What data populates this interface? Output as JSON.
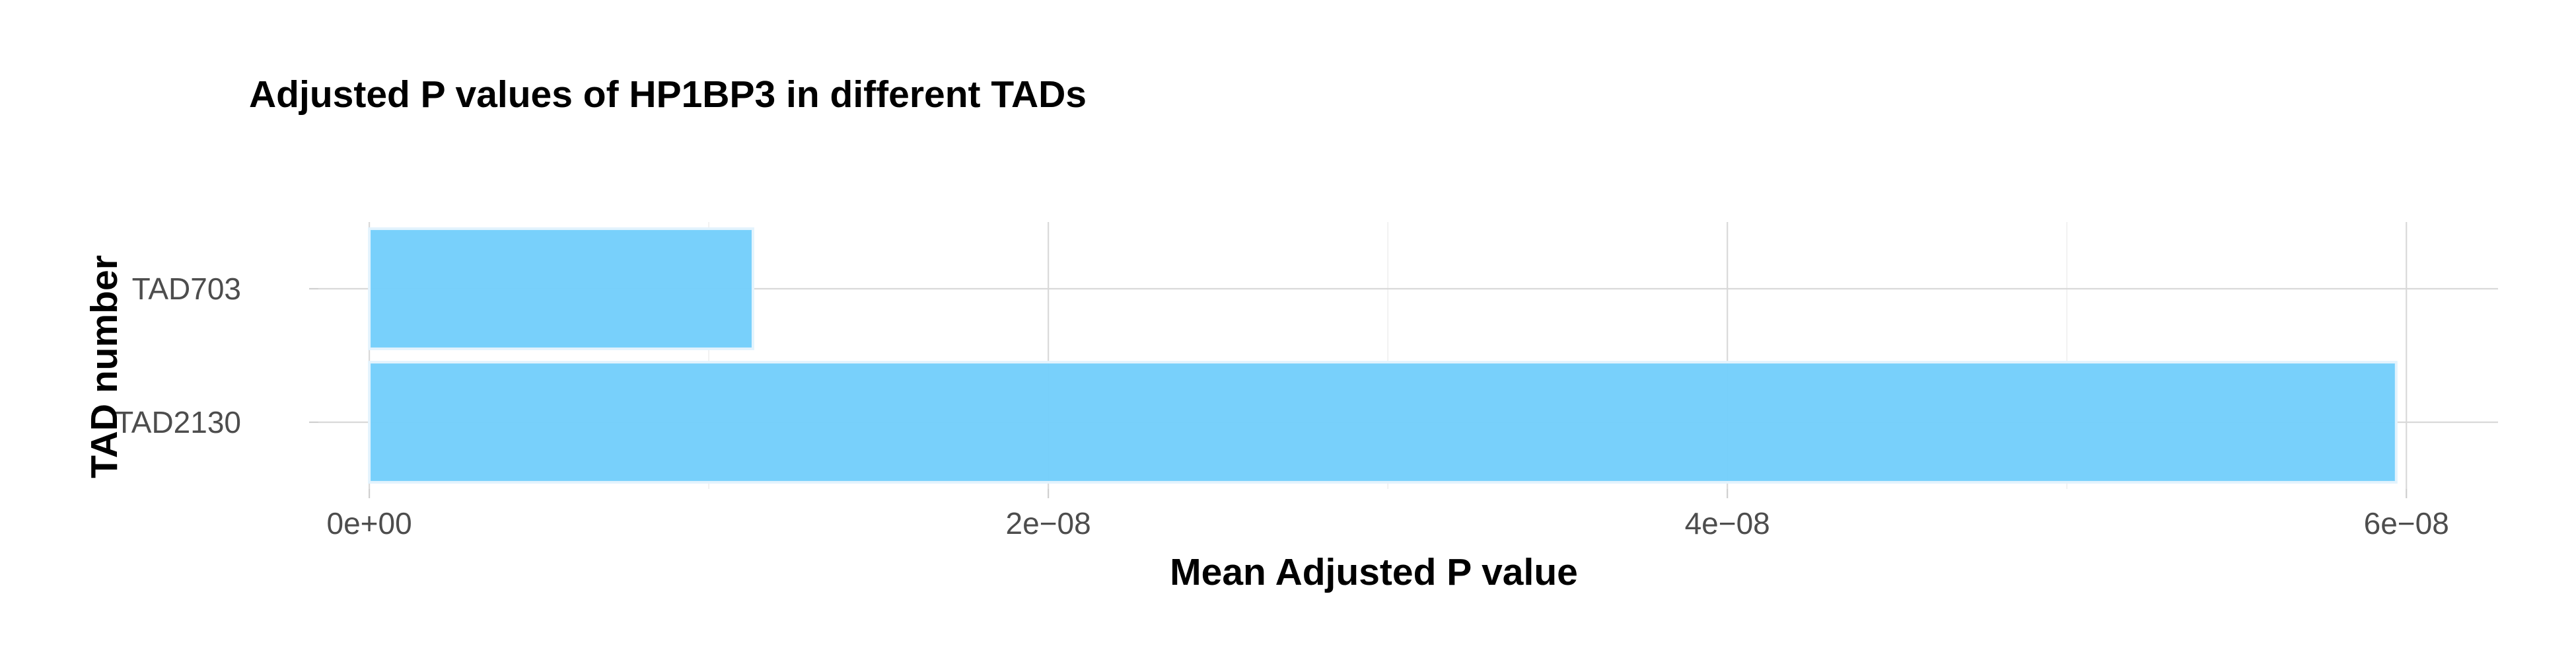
{
  "chart_data": {
    "type": "bar",
    "orientation": "horizontal",
    "title": "Adjusted P values of HP1BP3 in different TADs",
    "xlabel": "Mean Adjusted P value",
    "ylabel": "TAD number",
    "categories": [
      "TAD703",
      "TAD2130"
    ],
    "values": [
      1.13e-08,
      5.97e-08
    ],
    "xlim": [
      -1.5e-09,
      6.27e-08
    ],
    "x_ticks": [
      {
        "value": 0,
        "label": "0e+00"
      },
      {
        "value": 2e-08,
        "label": "2e−08"
      },
      {
        "value": 4e-08,
        "label": "4e−08"
      },
      {
        "value": 6e-08,
        "label": "6e−08"
      }
    ],
    "x_minor_ticks": [
      1e-08,
      3e-08,
      5e-08
    ],
    "grid": true,
    "bar_color": "#74cefb",
    "bar_outline_color": "#e3f3fd"
  }
}
